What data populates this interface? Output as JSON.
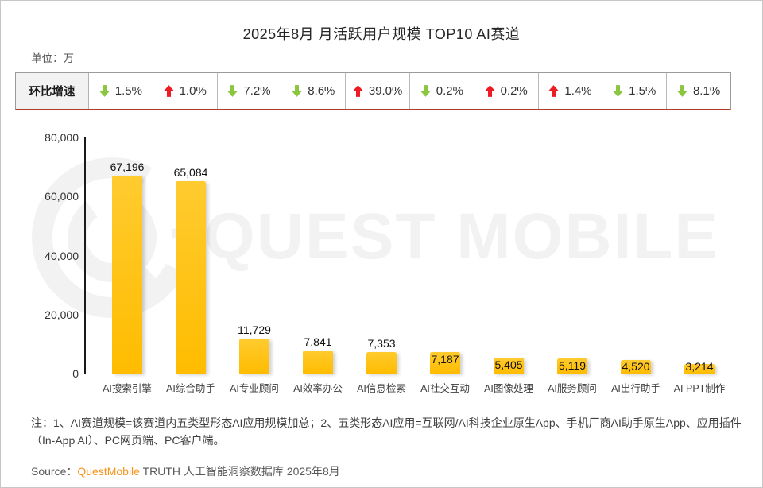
{
  "page": {
    "title": "2025年8月 月活跃用户规模 TOP10 AI赛道",
    "unit_label": "单位：万",
    "watermark_text": "QUEST MOBILE",
    "note": "注：1、AI赛道规模=该赛道内五类型形态AI应用规模加总；2、五类形态AI应用=互联网/AI科技企业原生App、手机厂商AI助手原生App、应用插件（In-App AI）、PC网页端、PC客户端。",
    "source_prefix": "Source：",
    "source_brand": "QuestMobile",
    "source_suffix": " TRUTH 人工智能洞察数据库 2025年8月"
  },
  "colors": {
    "bar_top": "#FFCB2F",
    "bar_bottom": "#FFBC00",
    "up_arrow": "#EC1C24",
    "down_arrow": "#8CC63F",
    "brand_orange": "#F7941E"
  },
  "growth_table": {
    "header": "环比增速",
    "cells": [
      {
        "direction": "down",
        "label": "1.5%"
      },
      {
        "direction": "up",
        "label": "1.0%"
      },
      {
        "direction": "down",
        "label": "7.2%"
      },
      {
        "direction": "down",
        "label": "8.6%"
      },
      {
        "direction": "up",
        "label": "39.0%"
      },
      {
        "direction": "down",
        "label": "0.2%"
      },
      {
        "direction": "up",
        "label": "0.2%"
      },
      {
        "direction": "up",
        "label": "1.4%"
      },
      {
        "direction": "down",
        "label": "1.5%"
      },
      {
        "direction": "down",
        "label": "8.1%"
      }
    ]
  },
  "chart_data": {
    "type": "bar",
    "title": "2025年8月 月活跃用户规模 TOP10 AI赛道",
    "unit": "万",
    "categories": [
      "AI搜索引擎",
      "AI综合助手",
      "AI专业顾问",
      "AI效率办公",
      "AI信息检索",
      "AI社交互动",
      "AI图像处理",
      "AI服务顾问",
      "AI出行助手",
      "AI PPT制作"
    ],
    "values": [
      67196,
      65084,
      11729,
      7841,
      7353,
      7187,
      5405,
      5119,
      4520,
      3214
    ],
    "value_labels": [
      "67,196",
      "65,084",
      "11,729",
      "7,841",
      "7,353",
      "7,187",
      "5,405",
      "5,119",
      "4,520",
      "3,214"
    ],
    "growth_pct_mom": [
      -1.5,
      1.0,
      -7.2,
      -8.6,
      39.0,
      -0.2,
      0.2,
      1.4,
      -1.5,
      -8.1
    ],
    "ylim": [
      0,
      80000
    ],
    "yticks": [
      80000,
      60000,
      40000,
      20000,
      0
    ],
    "ytick_labels": [
      "80,000",
      "60,000",
      "40,000",
      "20,000",
      "0"
    ],
    "grid": false,
    "legend": "none",
    "layout": {
      "label_overlap_start_index": 5
    }
  }
}
